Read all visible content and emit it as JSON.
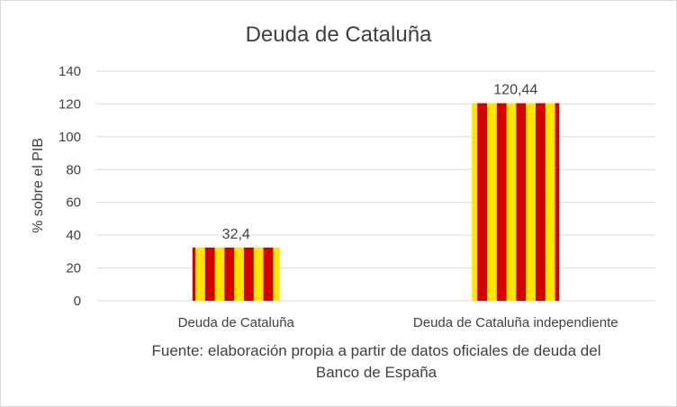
{
  "chart_data": {
    "type": "bar",
    "title": "Deuda de Cataluña",
    "ylabel": "% sobre el PIB",
    "xlabel": "",
    "categories": [
      "Deuda de Cataluña",
      "Deuda de Cataluña independiente"
    ],
    "values": [
      32.4,
      120.44
    ],
    "data_labels": [
      "32,4",
      "120,44"
    ],
    "ylim": [
      0,
      140
    ],
    "yticks": [
      "0",
      "20",
      "40",
      "60",
      "80",
      "100",
      "120",
      "140"
    ],
    "grid": true,
    "legend": "none",
    "bar_pattern": "vertical stripes",
    "colors": {
      "stripe_a": "#ffe600",
      "stripe_b": "#d40000",
      "text": "#404040",
      "grid": "#d9d9d9"
    },
    "source_lines": [
      "Fuente: elaboración propia a partir de datos oficiales de deuda del",
      "Banco de España"
    ]
  }
}
